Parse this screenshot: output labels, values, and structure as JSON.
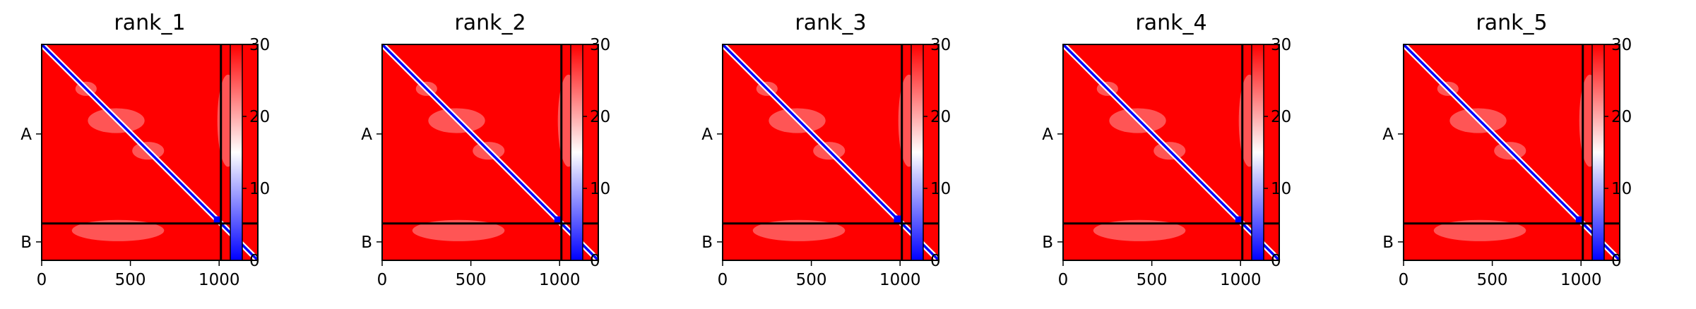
{
  "chart_data": {
    "type": "heatmap",
    "subtype": "predicted_aligned_error",
    "colormap": "bwr",
    "color_range": [
      0,
      30
    ],
    "colorbar_ticks": [
      "0",
      "10",
      "20",
      "30"
    ],
    "x_ticks": [
      "0",
      "500",
      "1000"
    ],
    "x_tick_values": [
      0,
      500,
      1000
    ],
    "y_ticks": [
      "A",
      "B"
    ],
    "xlim": [
      0,
      1218
    ],
    "chain_boundary": 1010,
    "panels": [
      {
        "title": "rank_1",
        "low_block": [
          970,
          1010
        ]
      },
      {
        "title": "rank_2",
        "low_block": [
          970,
          1010
        ]
      },
      {
        "title": "rank_3",
        "low_block": [
          965,
          1010
        ]
      },
      {
        "title": "rank_4",
        "low_block": [
          970,
          1010
        ]
      },
      {
        "title": "rank_5",
        "low_block": [
          970,
          1010
        ]
      }
    ],
    "colors": {
      "high": "#ff0000",
      "mid": "#ffffff",
      "low": "#0000ff",
      "divider": "#000000"
    }
  }
}
